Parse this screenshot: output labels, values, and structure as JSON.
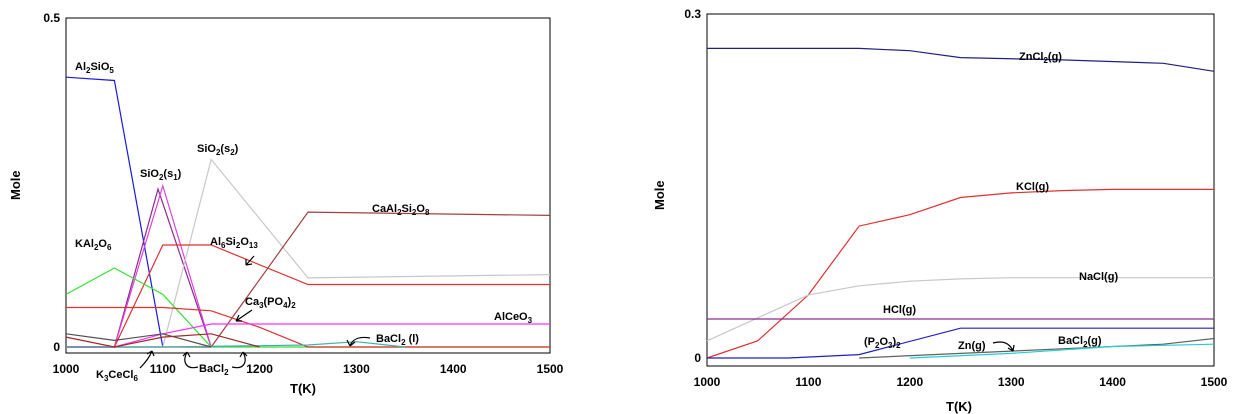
{
  "chart_data": [
    {
      "type": "line",
      "xlabel": "T(K)",
      "ylabel": "Mole",
      "xlim": [
        1000,
        1500
      ],
      "ylim": [
        0,
        0.5
      ],
      "xticks": [
        "1000",
        "1100",
        "1200",
        "1300",
        "1400",
        "1500"
      ],
      "yticks": [
        "0",
        "0.5"
      ],
      "series": [
        {
          "name": "Al2SiO5",
          "color": "#1a1adb",
          "x": [
            1000,
            1050,
            1100
          ],
          "y": [
            0.41,
            0.405,
            0.0
          ]
        },
        {
          "name": "SiO2(s1)",
          "color": "#8e2a8e",
          "x": [
            1000,
            1050,
            1095,
            1150
          ],
          "y": [
            0.0,
            0.0,
            0.24,
            0.0
          ]
        },
        {
          "name": "SiO2(s1) (2)",
          "color": "#e040e0",
          "x": [
            1000,
            1050,
            1100,
            1150
          ],
          "y": [
            0.0,
            0.0,
            0.245,
            0.0
          ]
        },
        {
          "name": "SiO2(s2)",
          "color": "#c8c8c8",
          "x": [
            1000,
            1100,
            1150,
            1250,
            1500
          ],
          "y": [
            0.0,
            0.0,
            0.285,
            0.105,
            0.11
          ]
        },
        {
          "name": "CaAl2Si2O8",
          "color": "#a04040",
          "x": [
            1000,
            1150,
            1250,
            1500
          ],
          "y": [
            0.0,
            0.0,
            0.205,
            0.2
          ]
        },
        {
          "name": "Al6Si2O13",
          "color": "#e03030",
          "x": [
            1000,
            1050,
            1100,
            1150,
            1250,
            1500
          ],
          "y": [
            0.0,
            0.0,
            0.155,
            0.155,
            0.095,
            0.095
          ]
        },
        {
          "name": "KAl2O6",
          "color": "#30e030",
          "x": [
            1000,
            1050,
            1100,
            1150,
            1500
          ],
          "y": [
            0.08,
            0.12,
            0.08,
            0.0,
            0.0
          ]
        },
        {
          "name": "Ca3(PO4)2",
          "color": "#e03030",
          "x": [
            1000,
            1100,
            1150,
            1200,
            1250,
            1500
          ],
          "y": [
            0.06,
            0.06,
            0.055,
            0.03,
            0.0,
            0.0
          ]
        },
        {
          "name": "AlCeO3",
          "color": "#ff30ff",
          "x": [
            1000,
            1050,
            1100,
            1150,
            1200,
            1500
          ],
          "y": [
            0.0,
            0.0,
            0.02,
            0.035,
            0.035,
            0.035
          ]
        },
        {
          "name": "BaCl2 (l)",
          "color": "#40b0b0",
          "x": [
            1000,
            1100,
            1200,
            1250,
            1300,
            1350
          ],
          "y": [
            0.0,
            0.0,
            0.002,
            0.003,
            0.008,
            0.0
          ]
        },
        {
          "name": "K3CeCl6",
          "color": "#505050",
          "x": [
            1000,
            1050,
            1100,
            1150
          ],
          "y": [
            0.02,
            0.01,
            0.02,
            0.0
          ]
        },
        {
          "name": "BaCl2",
          "color": "#a02828",
          "x": [
            1000,
            1050,
            1100,
            1150,
            1200
          ],
          "y": [
            0.015,
            0.0,
            0.015,
            0.02,
            0.0
          ]
        }
      ],
      "annotations": [
        {
          "text": "Al",
          "sub": "2",
          "rest": "SiO",
          "sub2": "5"
        },
        {
          "text": "SiO",
          "sub": "2",
          "rest": "(s",
          "sub2": "1",
          "rest2": ")"
        },
        {
          "text": "SiO",
          "sub": "2",
          "rest": "(s",
          "sub2": "2",
          "rest2": ")"
        },
        {
          "text": "CaAl",
          "sub": "2",
          "rest": "Si",
          "sub2": "2",
          "rest2": "O",
          "sub3": "8"
        },
        {
          "text": "KAl",
          "sub": "2",
          "rest": "O",
          "sub2": "6"
        },
        {
          "text": "Al",
          "sub": "6",
          "rest": "Si",
          "sub2": "2",
          "rest2": "O",
          "sub3": "13"
        },
        {
          "text": "Ca",
          "sub": "3",
          "rest": "(PO",
          "sub2": "4",
          "rest2": ")",
          "sub3": "2"
        },
        {
          "text": "AlCeO",
          "sub": "3"
        },
        {
          "text": "BaCl",
          "sub": "2",
          "rest": " (l)"
        },
        {
          "text": "K",
          "sub": "3",
          "rest": "CeCl",
          "sub2": "6"
        },
        {
          "text": "BaCl",
          "sub": "2"
        }
      ]
    },
    {
      "type": "line",
      "xlabel": "T(K)",
      "ylabel": "Mole",
      "xlim": [
        1000,
        1500
      ],
      "ylim": [
        0,
        0.3
      ],
      "xticks": [
        "1000",
        "1100",
        "1200",
        "1300",
        "1400",
        "1500"
      ],
      "yticks": [
        "0",
        "0.3"
      ],
      "series": [
        {
          "name": "ZnCl2(g)",
          "color": "#202080",
          "x": [
            1000,
            1150,
            1200,
            1250,
            1350,
            1450,
            1500
          ],
          "y": [
            0.27,
            0.27,
            0.268,
            0.262,
            0.26,
            0.257,
            0.25
          ]
        },
        {
          "name": "KCl(g)",
          "color": "#e03030",
          "x": [
            1000,
            1050,
            1100,
            1150,
            1200,
            1250,
            1300,
            1350,
            1400,
            1500
          ],
          "y": [
            0.0,
            0.015,
            0.055,
            0.115,
            0.125,
            0.14,
            0.144,
            0.146,
            0.147,
            0.147
          ]
        },
        {
          "name": "NaCl(g)",
          "color": "#c8c8c8",
          "x": [
            1000,
            1050,
            1100,
            1150,
            1200,
            1250,
            1300,
            1400,
            1500
          ],
          "y": [
            0.015,
            0.035,
            0.055,
            0.063,
            0.067,
            0.069,
            0.07,
            0.07,
            0.07
          ]
        },
        {
          "name": "HCl(g)",
          "color": "#8e2a8e",
          "x": [
            1000,
            1500
          ],
          "y": [
            0.034,
            0.034
          ]
        },
        {
          "name": "(P2O3)2",
          "color": "#2020c0",
          "x": [
            1000,
            1080,
            1150,
            1250,
            1500
          ],
          "y": [
            0.0,
            0.0,
            0.003,
            0.026,
            0.026
          ]
        },
        {
          "name": "Zn(g)",
          "color": "#606060",
          "x": [
            1150,
            1250,
            1350,
            1450,
            1500
          ],
          "y": [
            0.0,
            0.004,
            0.008,
            0.012,
            0.017
          ]
        },
        {
          "name": "BaCl2(g)",
          "color": "#20d0d0",
          "x": [
            1200,
            1300,
            1400,
            1500
          ],
          "y": [
            0.0,
            0.004,
            0.01,
            0.012
          ]
        }
      ],
      "annotations": [
        {
          "text": "ZnCl",
          "sub": "2",
          "rest": "(g)"
        },
        {
          "text": "KCl(g)"
        },
        {
          "text": "NaCl(g)"
        },
        {
          "text": "HCl(g)"
        },
        {
          "text": "(P",
          "sub": "2",
          "rest": "O",
          "sub2": "3",
          "rest2": ")",
          "sub3": "2"
        },
        {
          "text": "Zn(g)"
        },
        {
          "text": "BaCl",
          "sub": "2",
          "rest": "(g)"
        }
      ]
    }
  ]
}
